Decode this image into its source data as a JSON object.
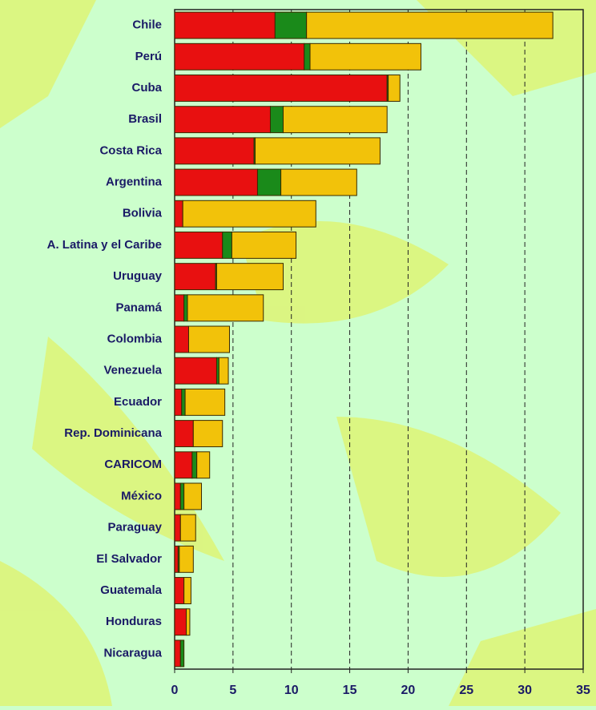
{
  "chart_data": {
    "type": "stacked-bar-horizontal",
    "categories": [
      "Chile",
      "Perú",
      "Cuba",
      "Brasil",
      "Costa Rica",
      "Argentina",
      "Bolivia",
      "A. Latina y el Caribe",
      "Uruguay",
      "Panamá",
      "Colombia",
      "Venezuela",
      "Ecuador",
      "Rep. Dominicana",
      "CARICOM",
      "México",
      "Paraguay",
      "El Salvador",
      "Guatemala",
      "Honduras",
      "Nicaragua"
    ],
    "series": [
      {
        "color": "#e81010",
        "values": [
          8.6,
          11.1,
          18.2,
          8.2,
          6.8,
          7.1,
          0.7,
          4.1,
          3.5,
          0.8,
          1.2,
          3.6,
          0.6,
          1.6,
          1.5,
          0.5,
          0.5,
          0.3,
          0.8,
          1.0,
          0.5
        ]
      },
      {
        "color": "#1a8a1a",
        "values": [
          2.7,
          0.5,
          0.1,
          1.1,
          0.1,
          2.0,
          0,
          0.8,
          0.1,
          0.3,
          0,
          0.2,
          0.3,
          0,
          0.4,
          0.3,
          0,
          0.1,
          0,
          0,
          0.3
        ]
      },
      {
        "color": "#f2c20a",
        "values": [
          21.1,
          9.5,
          1.0,
          8.9,
          10.7,
          6.5,
          11.4,
          5.5,
          5.7,
          6.5,
          3.5,
          0.8,
          3.4,
          2.5,
          1.1,
          1.5,
          1.3,
          1.2,
          0.6,
          0.3,
          0
        ]
      }
    ],
    "xlim": [
      0,
      35
    ],
    "xticks": [
      0,
      5,
      10,
      15,
      20,
      25,
      30,
      35
    ],
    "grid": true
  }
}
